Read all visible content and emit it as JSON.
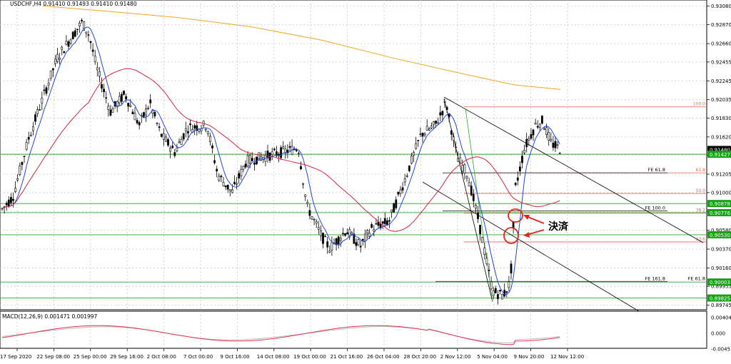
{
  "window": {
    "title": "USDCHF,H4  0.91410 0.91493 0.91410 0.91480"
  },
  "chart_data": {
    "type": "candlestick",
    "symbol": "USDCHF",
    "timeframe": "H4",
    "ohlc_header": "0.91410 0.91493 0.91410 0.91480",
    "price_axis_ticks": [
      "0.93080",
      "0.92870",
      "0.92660",
      "0.92455",
      "0.92245",
      "0.92035",
      "0.91830",
      "0.91620",
      "0.91415",
      "0.91205",
      "0.91000",
      "0.90790",
      "0.90580",
      "0.90370",
      "0.90160",
      "0.89955",
      "0.89745"
    ],
    "price_range": [
      0.8971,
      0.9313
    ],
    "time_labels": [
      "17 Sep 2020",
      "22 Sep 08:00",
      "25 Sep 00:00",
      "29 Sep 16:00",
      "2 Oct 08:00",
      "7 Oct 00:00",
      "9 Oct 16:00",
      "14 Oct 08:00",
      "19 Oct 00:00",
      "21 Oct 16:00",
      "26 Oct 04:00",
      "28 Oct 20:00",
      "2 Nov 12:00",
      "5 Nov 04:00",
      "9 Nov 20:00",
      "12 Nov 12:00"
    ],
    "price_tags": [
      {
        "value": "0.91480",
        "color": "#000000"
      },
      {
        "value": "0.91427",
        "color": "#17a117"
      },
      {
        "value": "0.90878",
        "color": "#17a117"
      },
      {
        "value": "0.90776",
        "color": "#17a117"
      },
      {
        "value": "0.90530",
        "color": "#17a117"
      },
      {
        "value": "0.90003",
        "color": "#17a117"
      },
      {
        "value": "0.89825",
        "color": "#17a117"
      }
    ],
    "horizontal_levels": [
      0.91427,
      0.90878,
      0.90776,
      0.9053,
      0.90003,
      0.89825
    ],
    "fib_levels": [
      {
        "label": "100.0",
        "price": 0.91955
      },
      {
        "label": "61.8",
        "price": 0.9122
      },
      {
        "label": "50.0",
        "price": 0.9099
      },
      {
        "label": "38.2",
        "price": 0.9077
      },
      {
        "label": "23.6",
        "price": 0.9045
      }
    ],
    "fe_labels": [
      {
        "label": "FE 61.8",
        "price": 0.9122
      },
      {
        "label": "FE 100.0",
        "price": 0.90795
      },
      {
        "label": "FE 161.8",
        "price": 0.9001
      },
      {
        "label": "FE 61.8",
        "price": 0.9001
      }
    ],
    "indicators": {
      "ma_blue": "#1f45e6",
      "ma_red": "#d6243f",
      "ma_orange": "#f5a623"
    },
    "annotation": {
      "text": "決済",
      "arrow_color": "#e8241c"
    },
    "macd": {
      "label": "MACD(12,26,9) 0.001471 0.001997",
      "ticks": [
        "0.004045",
        "0.000",
        "-0.004518"
      ]
    }
  }
}
